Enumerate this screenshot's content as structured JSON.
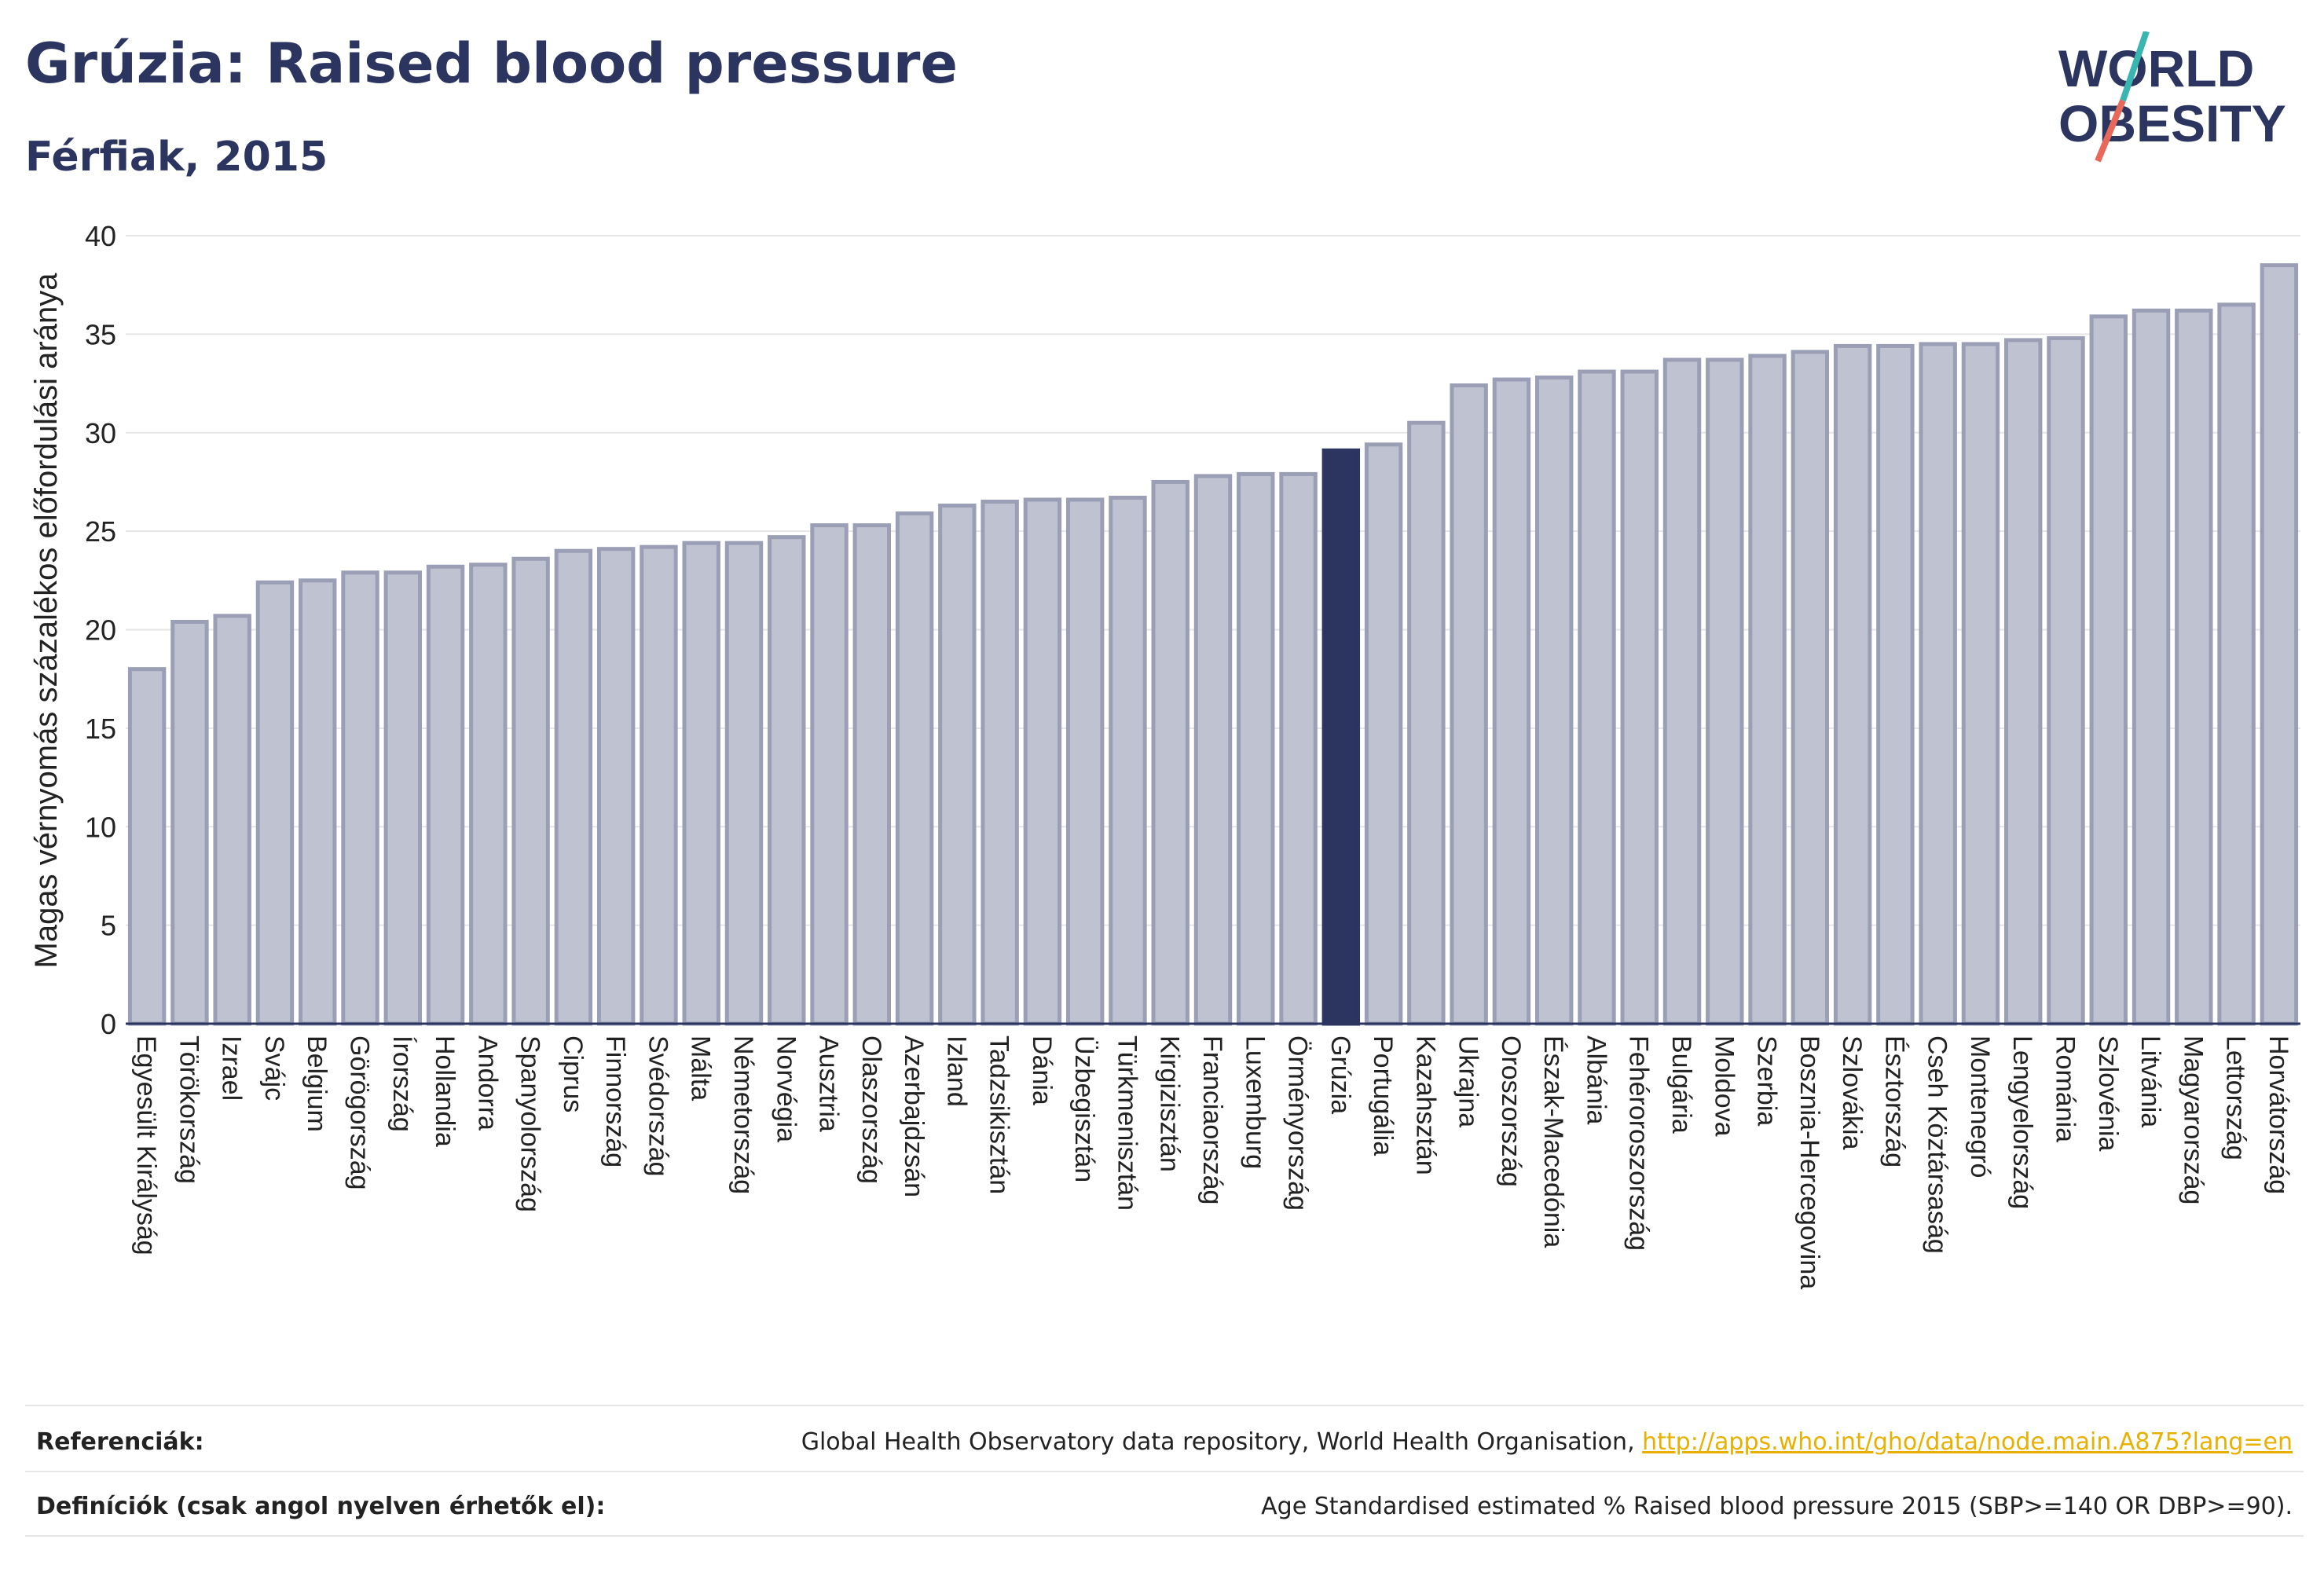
{
  "header": {
    "title": "Grúzia: Raised blood pressure",
    "subtitle": "Férfiak, 2015"
  },
  "logo": {
    "line1": "WORLD",
    "line2": "OBESITY"
  },
  "colors": {
    "bar": "#bfc2d1",
    "bar_stroke": "#9a9fb6",
    "highlight": "#2b3560",
    "title": "#2b3560",
    "link": "#e8b000",
    "logo_teal": "#3ab5b0",
    "logo_coral": "#e8685a"
  },
  "chart_data": {
    "type": "bar",
    "ylabel": "Magas vérnyomás százalékos előfordulási aránya",
    "ylim": [
      0,
      40
    ],
    "yticks": [
      0,
      5,
      10,
      15,
      20,
      25,
      30,
      35,
      40
    ],
    "grid": true,
    "highlight": "Grúzia",
    "categories": [
      "Egyesült Királyság",
      "Törökország",
      "Izrael",
      "Svájc",
      "Belgium",
      "Görögország",
      "Írország",
      "Hollandia",
      "Andorra",
      "Spanyolország",
      "Ciprus",
      "Finnország",
      "Svédország",
      "Málta",
      "Németország",
      "Norvégia",
      "Ausztria",
      "Olaszország",
      "Azerbajdzsán",
      "Izland",
      "Tadzsikisztán",
      "Dánia",
      "Üzbegisztán",
      "Türkmenisztán",
      "Kirgizisztán",
      "Franciaország",
      "Luxemburg",
      "Örményország",
      "Grúzia",
      "Portugália",
      "Kazahsztán",
      "Ukrajna",
      "Oroszország",
      "Észak-Macedónia",
      "Albánia",
      "Fehéroroszország",
      "Bulgária",
      "Moldova",
      "Szerbia",
      "Bosznia-Hercegovina",
      "Szlovákia",
      "Észtország",
      "Cseh Köztársaság",
      "Montenegró",
      "Lengyelország",
      "Románia",
      "Szlovénia",
      "Litvánia",
      "Magyarország",
      "Lettország",
      "Horvátország"
    ],
    "values": [
      18.0,
      20.4,
      20.7,
      22.4,
      22.5,
      22.9,
      22.9,
      23.2,
      23.3,
      23.6,
      24.0,
      24.1,
      24.2,
      24.4,
      24.4,
      24.7,
      25.3,
      25.3,
      25.9,
      26.3,
      26.5,
      26.6,
      26.6,
      26.7,
      27.5,
      27.8,
      27.9,
      27.9,
      29.1,
      29.4,
      30.5,
      32.4,
      32.7,
      32.8,
      33.1,
      33.1,
      33.7,
      33.7,
      33.9,
      34.1,
      34.4,
      34.4,
      34.5,
      34.5,
      34.7,
      34.8,
      35.9,
      36.2,
      36.2,
      36.5,
      38.5
    ]
  },
  "footer": {
    "ref_label": "Referenciák:",
    "ref_text": "Global Health Observatory data repository, World Health Organisation, ",
    "ref_link": "http://apps.who.int/gho/data/node.main.A875?lang=en",
    "def_label": "Definíciók (csak angol nyelven érhetők el):",
    "def_text": "Age Standardised estimated % Raised blood pressure 2015 (SBP>=140 OR DBP>=90)."
  }
}
